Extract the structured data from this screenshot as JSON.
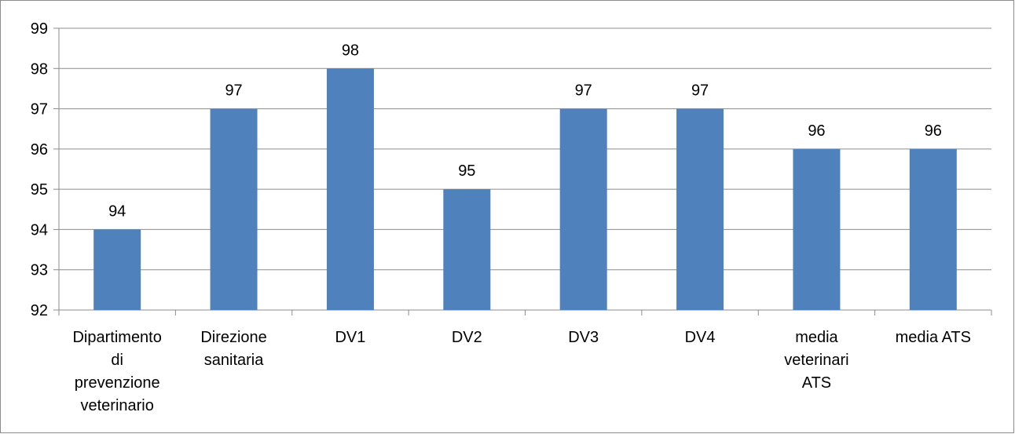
{
  "chart_data": {
    "type": "bar",
    "title": "",
    "xlabel": "",
    "ylabel": "",
    "categories": [
      [
        "Dipartimento",
        "di",
        "prevenzione",
        "veterinario"
      ],
      [
        "Direzione",
        "sanitaria"
      ],
      [
        "DV1"
      ],
      [
        "DV2"
      ],
      [
        "DV3"
      ],
      [
        "DV4"
      ],
      [
        "media",
        "veterinari",
        "ATS"
      ],
      [
        "media ATS"
      ]
    ],
    "values": [
      94,
      97,
      98,
      95,
      97,
      97,
      96,
      96
    ],
    "ylim": [
      92,
      99
    ],
    "yticks": [
      92,
      93,
      94,
      95,
      96,
      97,
      98,
      99
    ],
    "grid": true,
    "legend": "none",
    "colors": {
      "bar": "#4f81bd",
      "grid": "#8c8c8c",
      "axis": "#8c8c8c"
    }
  }
}
